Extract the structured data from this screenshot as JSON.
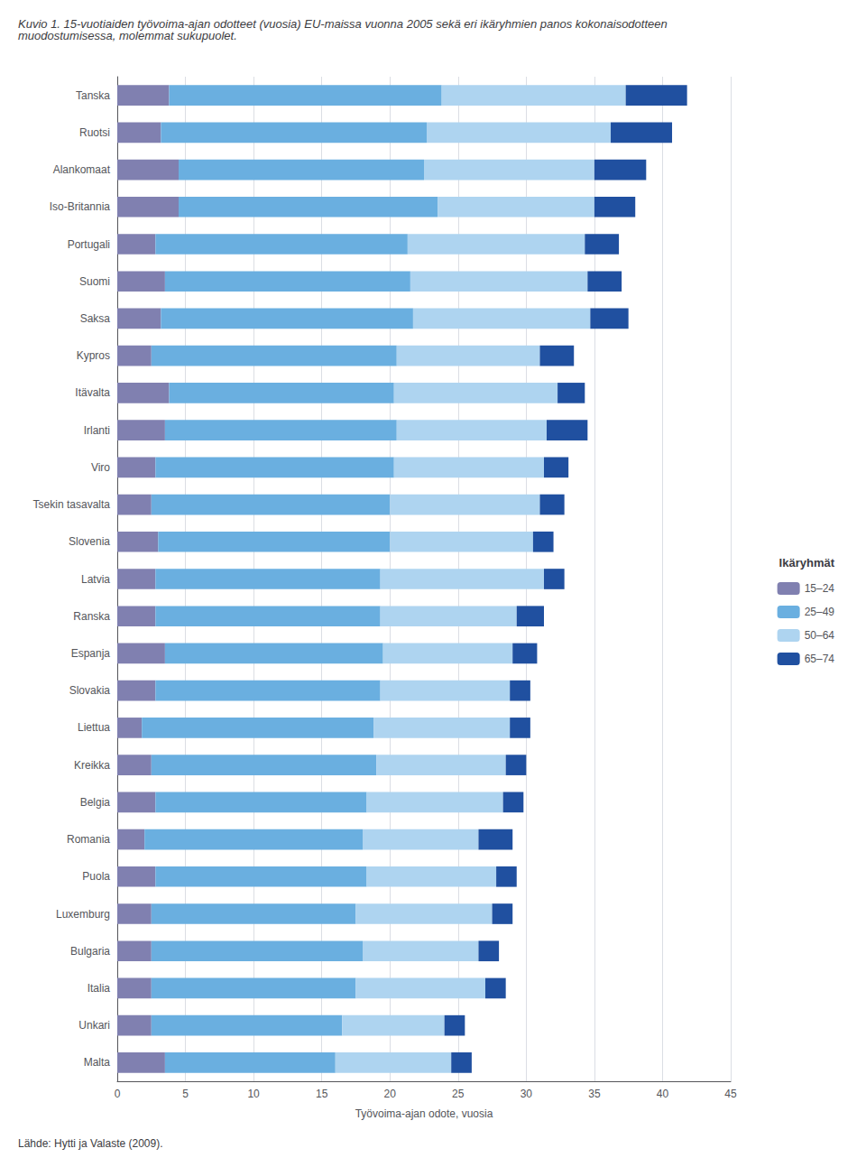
{
  "chart_data": {
    "type": "bar",
    "orientation": "horizontal",
    "stacked": true,
    "title": "Kuvio 1. 15-vuotiaiden työvoima-ajan odotteet (vuosia) EU-maissa vuonna 2005 sekä eri ikäryhmien panos kokonaisodotteen\nmuodostumisessa, molemmat sukupuolet.",
    "xlabel": "Työvoima-ajan odote, vuosia",
    "source": "Lähde: Hytti ja Valaste (2009).",
    "legend_title": "Ikäryhmät",
    "categories": [
      "Tanska",
      "Ruotsi",
      "Alankomaat",
      "Iso-Britannia",
      "Portugali",
      "Suomi",
      "Saksa",
      "Kypros",
      "Itävalta",
      "Irlanti",
      "Viro",
      "Tsekin tasavalta",
      "Slovenia",
      "Latvia",
      "Ranska",
      "Espanja",
      "Slovakia",
      "Liettua",
      "Kreikka",
      "Belgia",
      "Romania",
      "Puola",
      "Luxemburg",
      "Bulgaria",
      "Italia",
      "Unkari",
      "Malta"
    ],
    "series": [
      {
        "name": "15–24",
        "color": "#8080b0",
        "values": [
          3.8,
          3.2,
          4.5,
          4.5,
          2.8,
          3.5,
          3.2,
          2.5,
          3.8,
          3.5,
          2.8,
          2.5,
          3.0,
          2.8,
          2.8,
          3.5,
          2.8,
          1.8,
          2.5,
          2.8,
          2.0,
          2.8,
          2.5,
          2.5,
          2.5,
          2.5,
          3.5
        ]
      },
      {
        "name": "25–49",
        "color": "#6aafe0",
        "values": [
          20.0,
          19.5,
          18.0,
          19.0,
          18.5,
          18.0,
          18.5,
          18.0,
          16.5,
          17.0,
          17.5,
          17.5,
          17.0,
          16.5,
          16.5,
          16.0,
          16.5,
          17.0,
          16.5,
          15.5,
          16.0,
          15.5,
          15.0,
          15.5,
          15.0,
          14.0,
          12.5
        ]
      },
      {
        "name": "50–64",
        "color": "#aed4f0",
        "values": [
          13.5,
          13.5,
          12.5,
          11.5,
          13.0,
          13.0,
          13.0,
          10.5,
          12.0,
          11.0,
          11.0,
          11.0,
          10.5,
          12.0,
          10.0,
          9.5,
          9.5,
          10.0,
          9.5,
          10.0,
          8.5,
          9.5,
          10.0,
          8.5,
          9.5,
          7.5,
          8.5
        ]
      },
      {
        "name": "65–74",
        "color": "#2050a0",
        "values": [
          4.5,
          4.5,
          3.8,
          3.0,
          2.5,
          2.5,
          2.8,
          2.5,
          2.0,
          3.0,
          1.8,
          1.8,
          1.5,
          1.5,
          2.0,
          1.8,
          1.5,
          1.5,
          1.5,
          1.5,
          2.5,
          1.5,
          1.5,
          1.5,
          1.5,
          1.5,
          1.5
        ]
      }
    ],
    "xlim": [
      0,
      45
    ],
    "xticks": [
      0,
      5,
      10,
      15,
      20,
      25,
      30,
      35,
      40,
      45
    ],
    "grid": true,
    "legend": "right"
  }
}
